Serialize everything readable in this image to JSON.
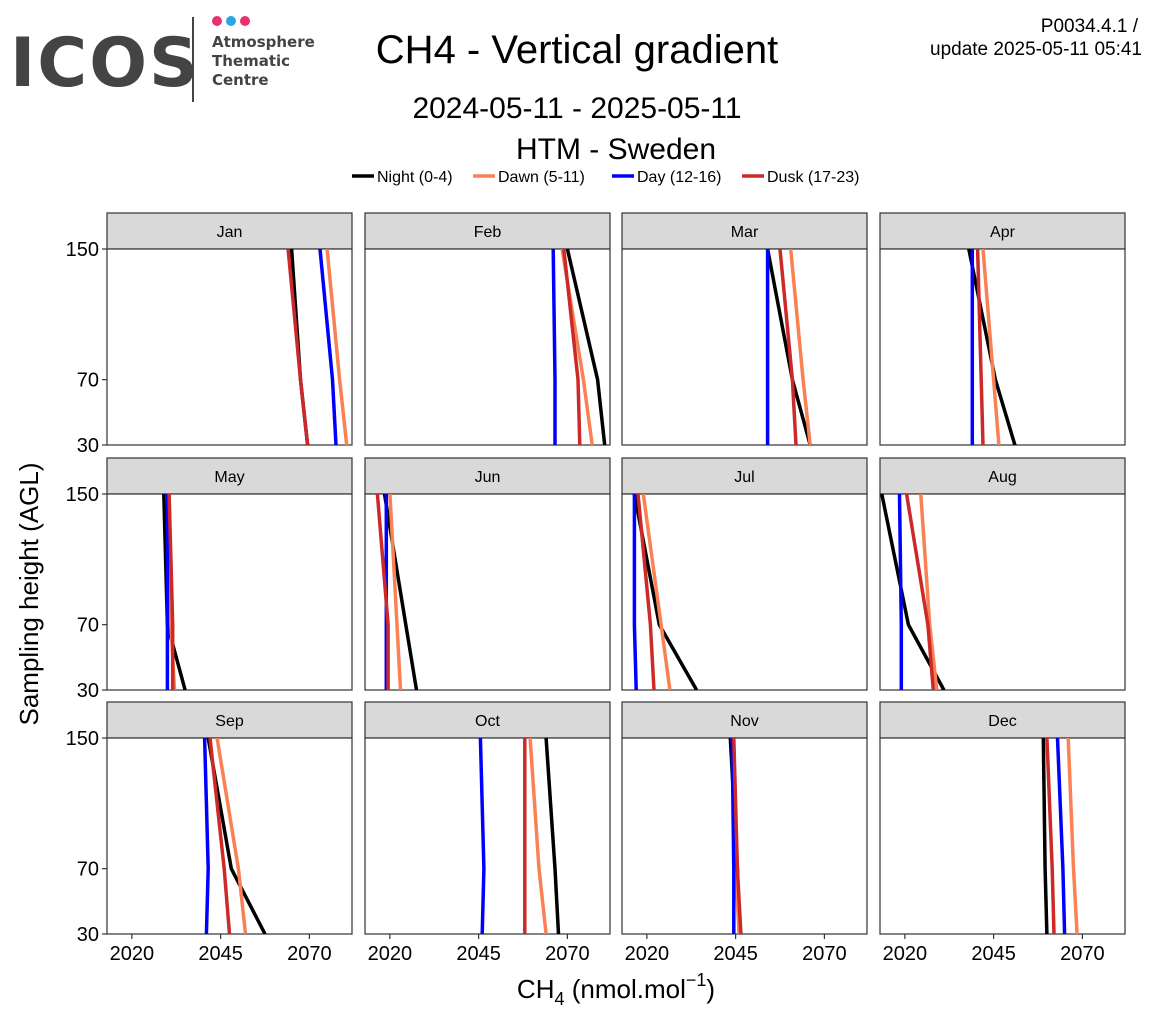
{
  "logo": {
    "wordmark": "ICOS",
    "line1": "Atmosphere",
    "line2": "Thematic",
    "line3": "Centre",
    "dot_colors": [
      "#e6326e",
      "#2aa6e6",
      "#e6326e"
    ]
  },
  "header": {
    "version": "P0034.4.1 /",
    "update": "update  2025-05-11 05:41"
  },
  "chart_data": {
    "type": "line",
    "title": "CH4 - Vertical gradient",
    "subtitle": "2024-05-11 - 2025-05-11",
    "station": "HTM - Sweden",
    "xlabel_main": "CH",
    "xlabel_sub": "4",
    "xlabel_unit": " (nmol.mol",
    "xlabel_sup": "−1",
    "xlabel_close": ")",
    "ylabel": "Sampling height (AGL)",
    "xlim": [
      2013,
      2082
    ],
    "ylim": [
      30,
      150
    ],
    "xticks": [
      2020,
      2045,
      2070
    ],
    "xtick_labels": [
      "2020",
      "2045",
      "2070"
    ],
    "yticks": [
      30,
      70,
      150
    ],
    "ytick_labels": [
      "30",
      "70",
      "150"
    ],
    "heights": [
      30,
      70,
      150
    ],
    "legend_position": "top",
    "series": [
      {
        "name": "Night (0-4)",
        "color": "#000000"
      },
      {
        "name": "Dawn (5-11)",
        "color": "#fa8154"
      },
      {
        "name": "Day (12-16)",
        "color": "#0000ff"
      },
      {
        "name": "Dusk (17-23)",
        "color": "#cc2929"
      }
    ],
    "panels": [
      {
        "month": "Jan",
        "values": [
          [
            2069.5,
            2067.5,
            2065
          ],
          [
            2080.5,
            2078.5,
            2075
          ],
          [
            2077.5,
            2076.5,
            2073
          ],
          [
            2069.5,
            2067.5,
            2064
          ]
        ]
      },
      {
        "month": "Feb",
        "values": [
          [
            2080.5,
            2078.5,
            2070
          ],
          [
            2077,
            2074.5,
            2068.5
          ],
          [
            2066.5,
            2066.5,
            2066
          ],
          [
            2073.5,
            2073,
            2069
          ]
        ]
      },
      {
        "month": "Mar",
        "values": [
          [
            2066,
            2061,
            2054
          ],
          [
            2066,
            2064,
            2060.5
          ],
          [
            2054,
            2054,
            2054
          ],
          [
            2062,
            2061,
            2057.5
          ]
        ]
      },
      {
        "month": "Apr",
        "values": [
          [
            2051,
            2045.5,
            2038
          ],
          [
            2046.5,
            2045,
            2042
          ],
          [
            2039,
            2039,
            2039
          ],
          [
            2042,
            2041.5,
            2040.5
          ]
        ]
      },
      {
        "month": "May",
        "values": [
          [
            2035,
            2030,
            2029
          ],
          [
            2032,
            2031,
            2030.5
          ],
          [
            2030,
            2030,
            2030
          ],
          [
            2031.5,
            2031.5,
            2030.5
          ]
        ]
      },
      {
        "month": "Jun",
        "values": [
          [
            2027.5,
            2024.5,
            2018.5
          ],
          [
            2023,
            2022,
            2020
          ],
          [
            2019,
            2019,
            2019
          ],
          [
            2019.5,
            2019.5,
            2016.5
          ]
        ]
      },
      {
        "month": "Jul",
        "values": [
          [
            2034,
            2023.5,
            2016.5
          ],
          [
            2026.5,
            2024,
            2019
          ],
          [
            2017,
            2016.5,
            2016.5
          ],
          [
            2022,
            2021,
            2017.5
          ]
        ]
      },
      {
        "month": "Aug",
        "values": [
          [
            2031,
            2021,
            2013.5
          ],
          [
            2029,
            2027,
            2024.5
          ],
          [
            2019,
            2019,
            2018.5
          ],
          [
            2028,
            2026.5,
            2020.5
          ]
        ]
      },
      {
        "month": "Sep",
        "values": [
          [
            2057.5,
            2048,
            2041.5
          ],
          [
            2052,
            2050,
            2044
          ],
          [
            2041,
            2041.5,
            2040.5
          ],
          [
            2047.5,
            2046,
            2042
          ]
        ]
      },
      {
        "month": "Oct",
        "values": [
          [
            2067.5,
            2066.5,
            2064
          ],
          [
            2064,
            2062,
            2059.5
          ],
          [
            2046,
            2046.5,
            2045.5
          ],
          [
            2058,
            2058,
            2058
          ]
        ]
      },
      {
        "month": "Nov",
        "values": [
          [
            2046,
            2045.5,
            2043.5
          ],
          [
            2046,
            2045,
            2044
          ],
          [
            2044.5,
            2044.5,
            2044
          ],
          [
            2046.5,
            2045.5,
            2044.5
          ]
        ]
      },
      {
        "month": "Dec",
        "values": [
          [
            2060,
            2059.5,
            2059
          ],
          [
            2068.5,
            2067.5,
            2066
          ],
          [
            2065,
            2064.5,
            2063
          ],
          [
            2062,
            2061.5,
            2060
          ]
        ]
      }
    ]
  }
}
